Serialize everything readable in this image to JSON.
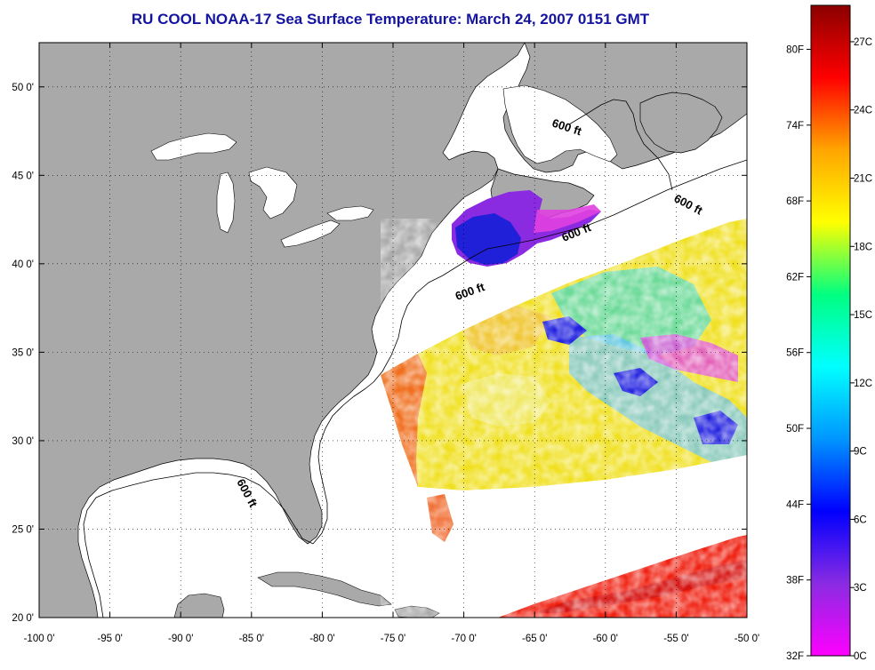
{
  "title": "RU COOL  NOAA-17  Sea Surface Temperature:  March 24, 2007 0151 GMT",
  "map": {
    "lon_range": [
      -100,
      -50
    ],
    "lat_range": [
      20,
      52.5
    ],
    "lon_ticks": [
      "-100 0'",
      "-95 0'",
      "-90 0'",
      "-85 0'",
      "-80 0'",
      "-75 0'",
      "-70 0'",
      "-65 0'",
      "-60 0'",
      "-55 0'",
      "-50 0'"
    ],
    "lat_ticks": [
      "50 0'",
      "45 0'",
      "40 0'",
      "35 0'",
      "30 0'",
      "25 0'",
      "20 0'"
    ],
    "contour_labels": [
      "600 ft",
      "600 ft",
      "600 ft",
      "600 ft",
      "600 ft"
    ],
    "land_color": "#a9a9a9",
    "water_color": "#ffffff",
    "grid": "dotted"
  },
  "colorbar": {
    "fahrenheit_labels": [
      "80F",
      "74F",
      "68F",
      "62F",
      "56F",
      "50F",
      "44F",
      "38F",
      "32F"
    ],
    "celsius_labels": [
      "27C",
      "24C",
      "21C",
      "18C",
      "15C",
      "12C",
      "9C",
      "6C",
      "3C",
      "0C"
    ],
    "range_c": [
      0,
      28.6
    ],
    "colors": [
      "#ff00ff",
      "#8a2be2",
      "#0000ff",
      "#0096ff",
      "#00ffff",
      "#00ff80",
      "#ffff00",
      "#ffa500",
      "#ff0000",
      "#8b0000"
    ]
  }
}
